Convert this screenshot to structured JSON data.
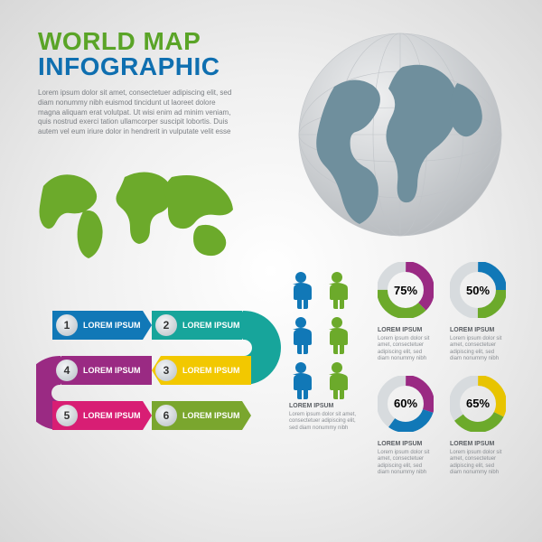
{
  "title": {
    "line1": "WORLD MAP",
    "line2": "INFOGRAPHIC",
    "color1": "#5aa427",
    "color2": "#0f6fb0"
  },
  "body_text": "Lorem ipsum dolor sit amet, consectetuer adipiscing elit, sed diam nonummy nibh euismod tincidunt ut laoreet dolore magna aliquam erat volutpat. Ut wisi enim ad minim veniam, quis nostrud exerci tation ullamcorper suscipit lobortis. Duis autem vel eum iriure dolor in hendrerit in vulputate velit esse",
  "globe": {
    "sphere_light": "#eeeff0",
    "sphere_dark": "#b8bcc0",
    "land_color": "#6f8f9d",
    "grid_color": "#c0c4c8"
  },
  "flat_map": {
    "fill": "#6caa2b"
  },
  "ribbon": {
    "steps": [
      {
        "n": "1",
        "label": "LOREM IPSUM",
        "color": "#1178b7"
      },
      {
        "n": "2",
        "label": "LOREM IPSUM",
        "color": "#17a59b"
      },
      {
        "n": "3",
        "label": "LOREM IPSUM",
        "color": "#f2c800"
      },
      {
        "n": "4",
        "label": "LOREM IPSUM",
        "color": "#9a2a83"
      },
      {
        "n": "5",
        "label": "LOREM IPSUM",
        "color": "#d81e74"
      },
      {
        "n": "6",
        "label": "LOREM IPSUM",
        "color": "#7aa62e"
      }
    ],
    "badge_fill": "#d8dde1"
  },
  "people": {
    "colors": [
      "#1178b7",
      "#6caa2b",
      "#1178b7",
      "#6caa2b",
      "#1178b7",
      "#6caa2b"
    ],
    "caption_title": "LOREM IPSUM",
    "caption_body": "Lorem ipsum dolor sit amet, consectetuer adipiscing elit, sed diam nonummy nibh"
  },
  "donuts": {
    "track_color": "#d7dbde",
    "items": [
      {
        "pct": 75,
        "label": "75%",
        "colorA": "#9a2a83",
        "colorB": "#6caa2b"
      },
      {
        "pct": 50,
        "label": "50%",
        "colorA": "#1178b7",
        "colorB": "#6caa2b"
      },
      {
        "pct": 60,
        "label": "60%",
        "colorA": "#9a2a83",
        "colorB": "#1178b7"
      },
      {
        "pct": 65,
        "label": "65%",
        "colorA": "#e8c400",
        "colorB": "#6caa2b"
      }
    ],
    "caption_title": "LOREM IPSUM",
    "caption_body": "Lorem ipsum dolor sit amet, consectetuer adipiscing elit, sed diam nonummy nibh"
  },
  "donut_row2": {
    "items": [
      {
        "pct": 60,
        "label": "60%",
        "colorA": "#9a2a83",
        "colorB": "#1178b7"
      },
      {
        "pct": 65,
        "label": "65%",
        "colorA": "#e8c400",
        "colorB": "#6caa2b"
      }
    ]
  }
}
